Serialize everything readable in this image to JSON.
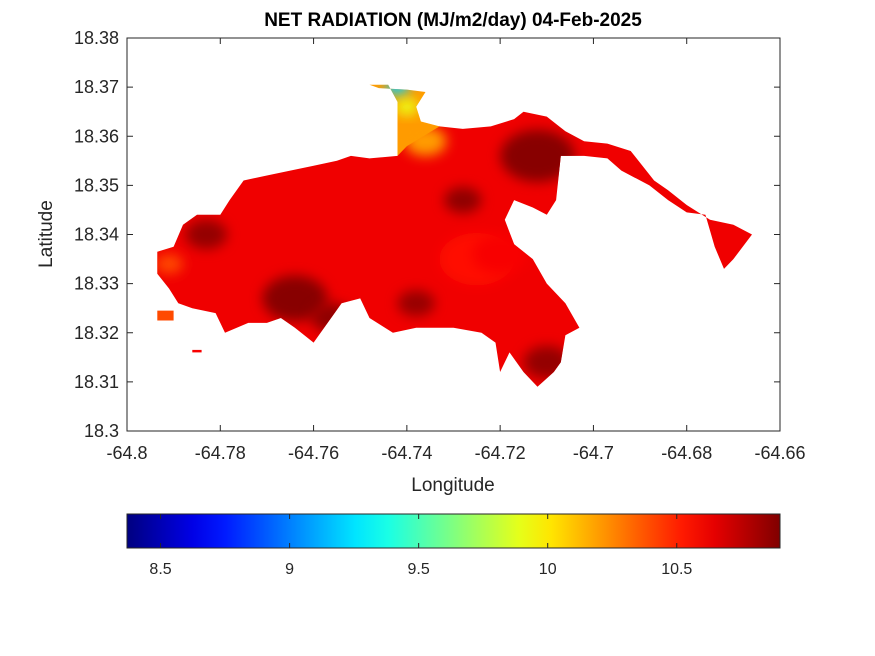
{
  "chart_data": {
    "type": "heatmap",
    "title": "NET RADIATION (MJ/m2/day) 04-Feb-2025",
    "xlabel": "Longitude",
    "ylabel": "Latitude",
    "xlim": [
      -64.8,
      -64.66
    ],
    "ylim": [
      18.3,
      18.38
    ],
    "xticks": [
      -64.8,
      -64.78,
      -64.76,
      -64.74,
      -64.72,
      -64.7,
      -64.68,
      -64.66
    ],
    "xtick_labels": [
      "-64.8",
      "-64.78",
      "-64.76",
      "-64.74",
      "-64.72",
      "-64.7",
      "-64.68",
      "-64.66"
    ],
    "yticks": [
      18.3,
      18.31,
      18.32,
      18.33,
      18.34,
      18.35,
      18.36,
      18.37,
      18.38
    ],
    "ytick_labels": [
      "18.3",
      "18.31",
      "18.32",
      "18.33",
      "18.34",
      "18.35",
      "18.36",
      "18.37",
      "18.38"
    ],
    "colormap": "jet",
    "colorbar": {
      "orientation": "horizontal",
      "position": "bottom",
      "clim": [
        8.37,
        10.9
      ],
      "ticks": [
        8.5,
        9,
        9.5,
        10,
        10.5
      ],
      "tick_labels": [
        "8.5",
        "9",
        "9.5",
        "10",
        "10.5"
      ]
    },
    "regions": [
      {
        "name": "main-island",
        "fill_value": 10.62,
        "outline": [
          [
            -64.7935,
            18.3365
          ],
          [
            -64.79,
            18.3375
          ],
          [
            -64.788,
            18.342
          ],
          [
            -64.785,
            18.344
          ],
          [
            -64.78,
            18.344
          ],
          [
            -64.778,
            18.347
          ],
          [
            -64.775,
            18.351
          ],
          [
            -64.77,
            18.352
          ],
          [
            -64.765,
            18.353
          ],
          [
            -64.76,
            18.354
          ],
          [
            -64.755,
            18.355
          ],
          [
            -64.752,
            18.356
          ],
          [
            -64.748,
            18.3555
          ],
          [
            -64.742,
            18.356
          ],
          [
            -64.741,
            18.36
          ],
          [
            -64.737,
            18.362
          ],
          [
            -64.733,
            18.362
          ],
          [
            -64.728,
            18.3615
          ],
          [
            -64.722,
            18.362
          ],
          [
            -64.717,
            18.3635
          ],
          [
            -64.715,
            18.365
          ],
          [
            -64.71,
            18.364
          ],
          [
            -64.706,
            18.361
          ],
          [
            -64.702,
            18.359
          ],
          [
            -64.697,
            18.3585
          ],
          [
            -64.692,
            18.357
          ],
          [
            -64.687,
            18.351
          ],
          [
            -64.684,
            18.349
          ],
          [
            -64.68,
            18.346
          ],
          [
            -64.675,
            18.343
          ],
          [
            -64.67,
            18.342
          ],
          [
            -64.666,
            18.34
          ],
          [
            -64.67,
            18.335
          ],
          [
            -64.672,
            18.333
          ],
          [
            -64.674,
            18.3375
          ],
          [
            -64.676,
            18.344
          ],
          [
            -64.68,
            18.3445
          ],
          [
            -64.684,
            18.347
          ],
          [
            -64.688,
            18.35
          ],
          [
            -64.694,
            18.353
          ],
          [
            -64.697,
            18.3555
          ],
          [
            -64.702,
            18.356
          ],
          [
            -64.707,
            18.356
          ],
          [
            -64.708,
            18.347
          ],
          [
            -64.71,
            18.344
          ],
          [
            -64.713,
            18.3455
          ],
          [
            -64.717,
            18.347
          ],
          [
            -64.719,
            18.343
          ],
          [
            -64.717,
            18.338
          ],
          [
            -64.713,
            18.335
          ],
          [
            -64.71,
            18.33
          ],
          [
            -64.706,
            18.326
          ],
          [
            -64.703,
            18.321
          ],
          [
            -64.706,
            18.3195
          ],
          [
            -64.707,
            18.314
          ],
          [
            -64.7085,
            18.312
          ],
          [
            -64.712,
            18.309
          ],
          [
            -64.715,
            18.312
          ],
          [
            -64.718,
            18.316
          ],
          [
            -64.72,
            18.312
          ],
          [
            -64.721,
            18.318
          ],
          [
            -64.724,
            18.32
          ],
          [
            -64.73,
            18.321
          ],
          [
            -64.738,
            18.321
          ],
          [
            -64.743,
            18.32
          ],
          [
            -64.748,
            18.323
          ],
          [
            -64.75,
            18.327
          ],
          [
            -64.754,
            18.326
          ],
          [
            -64.757,
            18.322
          ],
          [
            -64.76,
            18.318
          ],
          [
            -64.764,
            18.321
          ],
          [
            -64.767,
            18.323
          ],
          [
            -64.77,
            18.322
          ],
          [
            -64.774,
            18.322
          ],
          [
            -64.779,
            18.32
          ],
          [
            -64.781,
            18.324
          ],
          [
            -64.786,
            18.325
          ],
          [
            -64.789,
            18.326
          ],
          [
            -64.791,
            18.329
          ],
          [
            -64.7935,
            18.332
          ]
        ]
      },
      {
        "name": "north-peninsula",
        "fill_value": 10.2,
        "outline": [
          [
            -64.742,
            18.356
          ],
          [
            -64.742,
            18.367
          ],
          [
            -64.744,
            18.3705
          ],
          [
            -64.748,
            18.3705
          ],
          [
            -64.746,
            18.3698
          ],
          [
            -64.74,
            18.3695
          ],
          [
            -64.736,
            18.369
          ],
          [
            -64.738,
            18.366
          ],
          [
            -64.737,
            18.363
          ],
          [
            -64.733,
            18.362
          ],
          [
            -64.74,
            18.358
          ]
        ]
      },
      {
        "name": "western-islet",
        "fill_value": 10.4,
        "outline": [
          [
            -64.7935,
            18.3245
          ],
          [
            -64.79,
            18.3245
          ],
          [
            -64.79,
            18.3225
          ],
          [
            -64.7935,
            18.3225
          ]
        ]
      },
      {
        "name": "southwest-islet",
        "fill_value": 10.6,
        "outline": [
          [
            -64.786,
            18.3165
          ],
          [
            -64.784,
            18.3165
          ],
          [
            -64.784,
            18.316
          ],
          [
            -64.786,
            18.316
          ]
        ]
      }
    ],
    "hotspots": [
      {
        "lon": -64.725,
        "lat": 18.335,
        "value": 10.55,
        "radius": 0.008
      },
      {
        "lon": -64.72,
        "lat": 18.336,
        "value": 10.6,
        "radius": 0.006
      },
      {
        "lon": -64.764,
        "lat": 18.327,
        "value": 10.88,
        "radius": 0.007
      },
      {
        "lon": -64.756,
        "lat": 18.323,
        "value": 10.86,
        "radius": 0.0045
      },
      {
        "lon": -64.712,
        "lat": 18.356,
        "value": 10.88,
        "radius": 0.008
      },
      {
        "lon": -64.728,
        "lat": 18.347,
        "value": 10.86,
        "radius": 0.004
      },
      {
        "lon": -64.783,
        "lat": 18.34,
        "value": 10.85,
        "radius": 0.0045
      },
      {
        "lon": -64.791,
        "lat": 18.334,
        "value": 10.4,
        "radius": 0.003
      },
      {
        "lon": -64.71,
        "lat": 18.314,
        "value": 10.85,
        "radius": 0.005
      },
      {
        "lon": -64.738,
        "lat": 18.326,
        "value": 10.84,
        "radius": 0.004
      },
      {
        "lon": -64.736,
        "lat": 18.359,
        "value": 10.2,
        "radius": 0.0045
      },
      {
        "lon": -64.742,
        "lat": 18.37,
        "value": 9.2,
        "radius": 0.0025
      },
      {
        "lon": -64.74,
        "lat": 18.366,
        "value": 9.9,
        "radius": 0.0025
      }
    ]
  }
}
